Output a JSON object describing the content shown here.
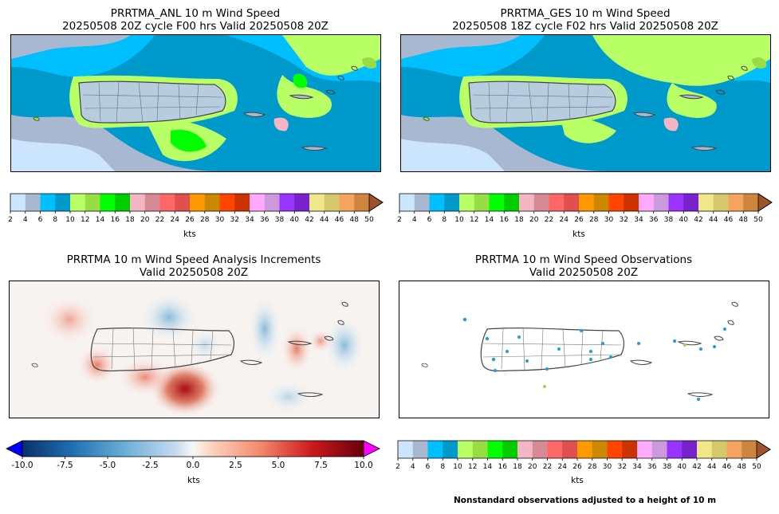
{
  "panels": {
    "anl": {
      "title1": "PRRTMA_ANL 10 m Wind Speed",
      "title2": "20250508 20Z cycle F00 hrs Valid 20250508 20Z"
    },
    "ges": {
      "title1": "PRRTMA_GES 10 m Wind Speed",
      "title2": "20250508 18Z cycle F02 hrs Valid 20250508 20Z"
    },
    "inc": {
      "title1": "PRRTMA 10 m Wind Speed Analysis Increments",
      "title2": "Valid 20250508 20Z"
    },
    "obs": {
      "title1": "PRRTMA 10 m Wind Speed Observations",
      "title2": "Valid 20250508 20Z"
    }
  },
  "colorbars": {
    "speed": {
      "unit": "kts",
      "ticks": [
        "2",
        "4",
        "6",
        "8",
        "10",
        "12",
        "14",
        "16",
        "18",
        "20",
        "22",
        "24",
        "26",
        "28",
        "30",
        "32",
        "34",
        "36",
        "38",
        "40",
        "42",
        "44",
        "46",
        "48",
        "50"
      ],
      "colors": [
        "#cce5ff",
        "#a8b8d0",
        "#00bfff",
        "#0099cc",
        "#b9ff66",
        "#99dd44",
        "#00ff00",
        "#00cc00",
        "#f4b6c2",
        "#d58a94",
        "#ff6666",
        "#e05050",
        "#ff9900",
        "#cc8800",
        "#ff4500",
        "#cc3300",
        "#ffaaff",
        "#cc99dd",
        "#9933ff",
        "#7722cc",
        "#f0e68c",
        "#d4c86a",
        "#f4a460",
        "#cd853f"
      ],
      "extend_color": "#a0522d"
    },
    "increment": {
      "unit": "kts",
      "ticks": [
        "-10.0",
        "-7.5",
        "-5.0",
        "-2.5",
        "0.0",
        "2.5",
        "5.0",
        "7.5",
        "10.0"
      ],
      "under_color": "#0000ff",
      "over_color": "#ff00ff"
    }
  },
  "footnote": "Nonstandard observations adjusted to a height of 10 m"
}
